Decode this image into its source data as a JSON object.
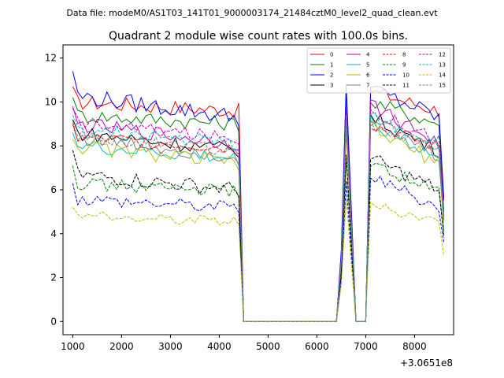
{
  "figure": {
    "suptitle": "Data file: modeM0/AS1T03_141T01_9000003174_21484cztM0_level2_quad_clean.evt",
    "title": "Quadrant 2 module wise count rates with 100.0s bins.",
    "x_offset_label": "+3.0651e8"
  },
  "chart_data": {
    "type": "line",
    "title": "Quadrant 2 module wise count rates with 100.0s bins.",
    "xlabel": "",
    "ylabel": "",
    "x_offset": 306510000,
    "xlim": [
      800,
      8800
    ],
    "ylim": [
      -0.6,
      12.6
    ],
    "x_ticks": [
      1000,
      2000,
      3000,
      4000,
      5000,
      6000,
      7000,
      8000
    ],
    "y_ticks": [
      0,
      2,
      4,
      6,
      8,
      10,
      12
    ],
    "x_tick_labels": [
      "1000",
      "2000",
      "3000",
      "4000",
      "5000",
      "6000",
      "7000",
      "8000"
    ],
    "y_tick_labels": [
      "0",
      "2",
      "4",
      "6",
      "8",
      "10",
      "12"
    ],
    "grid": false,
    "legend": "top-right",
    "series": [
      {
        "name": "0",
        "color": "#ff0000",
        "dash": "solid",
        "first": 10.7,
        "base": 10.0,
        "amp": 0.35,
        "end": 9.6,
        "peak1": 10.6,
        "peak2": 10.5,
        "tail": 5.5
      },
      {
        "name": "1",
        "color": "#008000",
        "dash": "solid",
        "first": 10.2,
        "base": 9.4,
        "amp": 0.35,
        "end": 9.0,
        "peak1": 10.2,
        "peak2": 10.0,
        "tail": 5.0
      },
      {
        "name": "2",
        "color": "#0000ff",
        "dash": "solid",
        "first": 11.4,
        "base": 10.3,
        "amp": 0.4,
        "end": 9.3,
        "peak1": 10.8,
        "peak2": 10.6,
        "tail": 5.6
      },
      {
        "name": "3",
        "color": "#000000",
        "dash": "solid",
        "first": 9.2,
        "base": 8.6,
        "amp": 0.35,
        "end": 7.8,
        "peak1": 9.2,
        "peak2": 9.3,
        "tail": 4.8
      },
      {
        "name": "4",
        "color": "#bf00bf",
        "dash": "solid",
        "first": 9.8,
        "base": 9.0,
        "amp": 0.35,
        "end": 8.1,
        "peak1": 9.8,
        "peak2": 9.9,
        "tail": 5.0
      },
      {
        "name": "5",
        "color": "#00bfbf",
        "dash": "solid",
        "first": 8.6,
        "base": 8.0,
        "amp": 0.35,
        "end": 7.4,
        "peak1": 9.0,
        "peak2": 9.1,
        "tail": 4.6
      },
      {
        "name": "6",
        "color": "#bfbf00",
        "dash": "solid",
        "first": 8.3,
        "base": 8.0,
        "amp": 0.35,
        "end": 7.2,
        "peak1": 8.6,
        "peak2": 8.8,
        "tail": 4.2
      },
      {
        "name": "7",
        "color": "#808080",
        "dash": "solid",
        "first": 9.0,
        "base": 8.4,
        "amp": 0.35,
        "end": 7.5,
        "peak1": 9.0,
        "peak2": 9.2,
        "tail": 4.6
      },
      {
        "name": "8",
        "color": "#ff0000",
        "dash": "dashed",
        "first": 9.0,
        "base": 8.4,
        "amp": 0.3,
        "end": 7.9,
        "peak1": 9.0,
        "peak2": 9.0,
        "tail": 4.6
      },
      {
        "name": "9",
        "color": "#008000",
        "dash": "dashed",
        "first": 7.1,
        "base": 6.3,
        "amp": 0.3,
        "end": 5.9,
        "peak1": 7.4,
        "peak2": 7.2,
        "tail": 4.0
      },
      {
        "name": "10",
        "color": "#0000ff",
        "dash": "dashed",
        "first": 6.3,
        "base": 5.6,
        "amp": 0.3,
        "end": 5.2,
        "peak1": 6.4,
        "peak2": 6.6,
        "tail": 3.6
      },
      {
        "name": "11",
        "color": "#000000",
        "dash": "dashed",
        "first": 7.8,
        "base": 6.7,
        "amp": 0.35,
        "end": 6.0,
        "peak1": 7.6,
        "peak2": 7.4,
        "tail": 3.9
      },
      {
        "name": "12",
        "color": "#bf00bf",
        "dash": "dashed",
        "first": 9.7,
        "base": 9.1,
        "amp": 0.3,
        "end": 8.3,
        "peak1": 9.6,
        "peak2": 9.6,
        "tail": 5.0
      },
      {
        "name": "13",
        "color": "#00bfbf",
        "dash": "dashed",
        "first": 9.4,
        "base": 8.7,
        "amp": 0.35,
        "end": 8.1,
        "peak1": 9.4,
        "peak2": 9.3,
        "tail": 4.7
      },
      {
        "name": "14",
        "color": "#bfbf00",
        "dash": "dashed",
        "first": 5.2,
        "base": 4.8,
        "amp": 0.25,
        "end": 4.6,
        "peak1": 5.6,
        "peak2": 5.3,
        "tail": 3.0
      },
      {
        "name": "15",
        "color": "#808080",
        "dash": "dashed",
        "first": 9.1,
        "base": 8.4,
        "amp": 0.3,
        "end": 7.8,
        "peak1": 9.1,
        "peak2": 9.0,
        "tail": 4.5
      }
    ],
    "segments": {
      "active1": [
        1000,
        4400
      ],
      "drop1": [
        4500,
        6400
      ],
      "peak1": 6600,
      "gap": [
        6800,
        6950
      ],
      "active2": [
        7100,
        8500
      ],
      "last": 8600
    }
  }
}
